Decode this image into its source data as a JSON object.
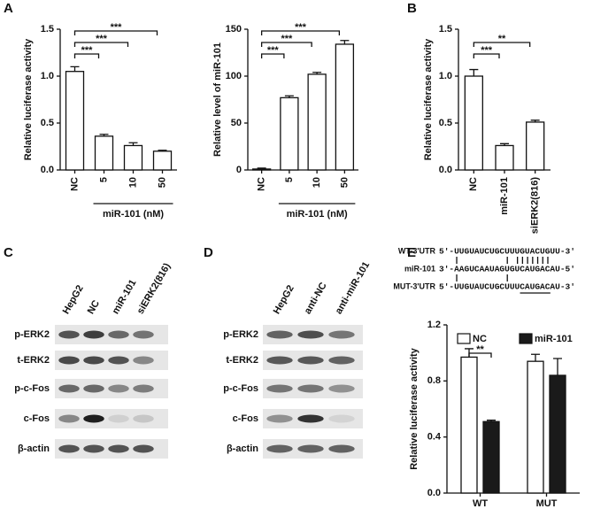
{
  "panels": [
    "A",
    "B",
    "C",
    "D",
    "E"
  ],
  "chart_data": [
    {
      "type": "bar",
      "ylabel": "Relative luciferase activity",
      "xlabel": "miR-101 (nM)",
      "categories": [
        "NC",
        "5",
        "10",
        "50"
      ],
      "values": [
        1.05,
        0.36,
        0.26,
        0.2
      ],
      "errors": [
        0.05,
        0.02,
        0.03,
        0.01
      ],
      "color": "#ffffff",
      "ylim": [
        0,
        1.5
      ],
      "yticks": [
        {
          "value": 0,
          "label": "0.0"
        },
        0.5,
        {
          "value": 1,
          "label": "1.0"
        },
        1.5
      ],
      "annotations": [
        "***",
        "***",
        "***"
      ]
    },
    {
      "type": "bar",
      "ylabel": "Relative level of miR-101",
      "xlabel": "miR-101 (nM)",
      "categories": [
        "NC",
        "5",
        "10",
        "50"
      ],
      "values": [
        1,
        77,
        102,
        134
      ],
      "errors": [
        1,
        2,
        2,
        4
      ],
      "color": "#ffffff",
      "ylim": [
        0,
        150
      ],
      "yticks": [
        0,
        50,
        100,
        150
      ],
      "annotations": [
        "***",
        "***",
        "***"
      ]
    },
    {
      "type": "bar",
      "ylabel": "Relative luciferase activity",
      "categories": [
        "NC",
        "miR-101",
        "siERK2(816)"
      ],
      "values": [
        1.0,
        0.26,
        0.51
      ],
      "errors": [
        0.07,
        0.02,
        0.02
      ],
      "color": "#ffffff",
      "ylim": [
        0,
        1.5
      ],
      "yticks": [
        {
          "value": 0,
          "label": "0.0"
        },
        0.5,
        {
          "value": 1,
          "label": "1.0"
        },
        1.5
      ],
      "annotations": [
        "***",
        "**"
      ]
    },
    {
      "type": "grouped_bar",
      "ylabel": "Relative luciferase activity",
      "categories": [
        "WT",
        "MUT"
      ],
      "series": [
        {
          "name": "NC",
          "color": "#ffffff",
          "values": [
            0.97,
            0.94
          ],
          "errors": [
            0.06,
            0.05
          ]
        },
        {
          "name": "miR-101",
          "color": "#1a1a1a",
          "values": [
            0.51,
            0.84
          ],
          "errors": [
            0.01,
            0.12
          ]
        }
      ],
      "ylim": [
        0,
        1.2
      ],
      "yticks": [
        {
          "value": 0,
          "label": "0.0"
        },
        0.4,
        0.8,
        1.2
      ],
      "annotations": [
        "**"
      ]
    }
  ],
  "blots": [
    {
      "lanes": [
        "HepG2",
        "NC",
        "miR-101",
        "siERK2(816)"
      ],
      "rows": [
        "p-ERK2",
        "t-ERK2",
        "p-c-Fos",
        "c-Fos",
        "β-actin"
      ]
    },
    {
      "lanes": [
        "HepG2",
        "anti-NC",
        "anti-miR-101"
      ],
      "rows": [
        "p-ERK2",
        "t-ERK2",
        "p-c-Fos",
        "c-Fos",
        "β-actin"
      ]
    }
  ],
  "sequences": [
    {
      "label": "WT-3'UTR",
      "sequence": "5'-UUGUAUCUGCUUUGUACUGUU-3'"
    },
    {
      "label": "miR-101",
      "sequence": "3'-AAGUCAAUAGUGUCAUGACAU-5'"
    },
    {
      "label": "MUT-3'UTR",
      "sequence": "5'-UUGUAUCUGCUUUCAUGACAU-3'"
    }
  ]
}
